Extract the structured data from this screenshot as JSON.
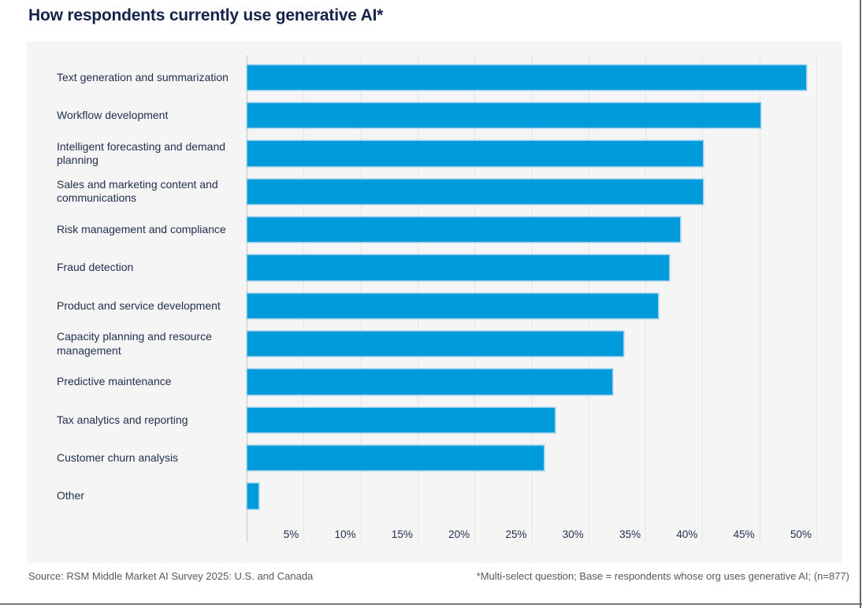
{
  "page": {
    "title": "How respondents currently use generative AI*",
    "footer_left": "Source: RSM Middle Market AI Survey 2025: U.S. and Canada",
    "footer_right": "*Multi-select question; Base = respondents whose org uses generative AI; (n=877)"
  },
  "colors": {
    "bar_fill": "#009BDB",
    "bar_halo": "#82C7E9",
    "title_text": "#15234A",
    "label_text": "#22304F",
    "panel_background": "#F5F5F6",
    "gridline": "#E4E4E7",
    "axis_line": "#C6C6CA",
    "footer_text": "#595959",
    "frame_line": "#787878"
  },
  "chart_data": {
    "type": "bar",
    "orientation": "horizontal",
    "title": "How respondents currently use generative AI*",
    "categories": [
      "Text generation and summarization",
      "Workflow development",
      "Intelligent forecasting and demand planning",
      "Sales and marketing content and communications",
      "Risk management and compliance",
      "Fraud detection",
      "Product and service development",
      "Capacity planning and resource management",
      "Predictive maintenance",
      "Tax analytics and reporting",
      "Customer churn analysis",
      "Other"
    ],
    "values": [
      49,
      45,
      40,
      40,
      38,
      37,
      36,
      33,
      32,
      27,
      26,
      1
    ],
    "unit": "%",
    "xlim": [
      0,
      50
    ],
    "x_tick_step": 5,
    "x_ticks": [
      "5%",
      "10%",
      "15%",
      "20%",
      "25%",
      "30%",
      "35%",
      "40%",
      "45%",
      "50%"
    ],
    "grid": true,
    "legend": "none"
  }
}
